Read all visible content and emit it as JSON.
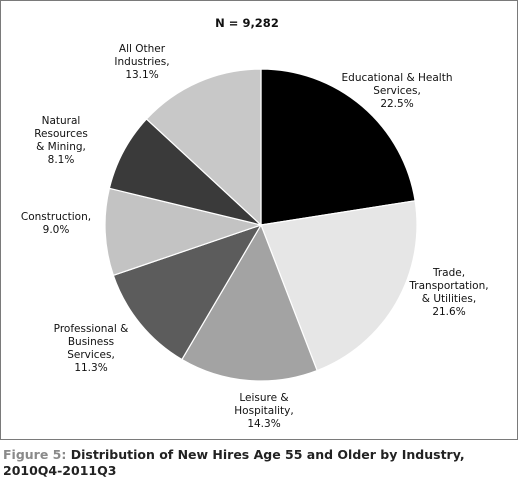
{
  "chart_data": {
    "type": "pie",
    "title": "N = 9,282",
    "start_angle_deg": 90,
    "direction": "clockwise",
    "slices": [
      {
        "label_lines": [
          "Educational & Health",
          "Services,",
          "22.5%"
        ],
        "value": 22.5,
        "color": "#000000"
      },
      {
        "label_lines": [
          "Trade,",
          "Transportation,",
          "& Utilities,",
          "21.6%"
        ],
        "value": 21.6,
        "color": "#e6e6e6"
      },
      {
        "label_lines": [
          "Leisure &",
          "Hospitality,",
          "14.3%"
        ],
        "value": 14.3,
        "color": "#a3a3a3"
      },
      {
        "label_lines": [
          "Professional &",
          "Business",
          "Services,",
          "11.3%"
        ],
        "value": 11.3,
        "color": "#5c5c5c"
      },
      {
        "label_lines": [
          "Construction,",
          "9.0%"
        ],
        "value": 9.0,
        "color": "#c3c3c3"
      },
      {
        "label_lines": [
          "Natural",
          "Resources",
          "& Mining,",
          "8.1%"
        ],
        "value": 8.1,
        "color": "#3a3a3a"
      },
      {
        "label_lines": [
          "All Other",
          "Industries,",
          "13.1%"
        ],
        "value": 13.1,
        "color": "#c8c8c8"
      }
    ]
  },
  "caption": {
    "figure_label": "Figure 5:",
    "text": " Distribution of New Hires Age 55 and Older by Industry, 2010Q4-2011Q3"
  }
}
